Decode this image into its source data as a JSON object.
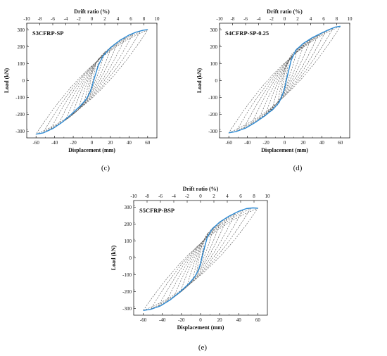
{
  "figure": {
    "panel_captions": [
      "(c)",
      "(d)",
      "(e)"
    ]
  },
  "chart_data": [
    {
      "type": "line",
      "panel": "(c)",
      "specimen": "S3CFRP-SP",
      "xlabel": "Displacement (mm)",
      "ylabel": "Load (kN)",
      "top_xlabel": "Drift ratio (%)",
      "xlim": [
        -70,
        70
      ],
      "ylim": [
        -340,
        340
      ],
      "xticks": [
        -60,
        -40,
        -20,
        0,
        20,
        40,
        60
      ],
      "yticks": [
        -300,
        -200,
        -100,
        0,
        100,
        200,
        300
      ],
      "top_xlim": [
        -10,
        10
      ],
      "top_xticks": [
        -10,
        -8,
        -6,
        -4,
        -2,
        0,
        2,
        4,
        6,
        8,
        10
      ],
      "grid": false,
      "colors": {
        "envelope": "#2e8bd4",
        "cycles": "#5a5a5a"
      },
      "series": [
        {
          "style": "solid",
          "x": [
            -60,
            -52,
            -42,
            -32,
            -22,
            -12,
            -6,
            -2,
            0,
            3,
            7,
            12,
            20,
            30,
            40,
            48,
            55,
            60
          ],
          "y": [
            -318,
            -310,
            -285,
            -248,
            -200,
            -148,
            -110,
            -70,
            -40,
            20,
            90,
            145,
            195,
            238,
            270,
            288,
            298,
            302
          ]
        },
        {
          "style": "dashed",
          "amplitudes": [
            {
              "dmax": 60,
              "pmax": 300,
              "dmin": -60,
              "pmin": -318
            },
            {
              "dmax": 52,
              "pmax": 290,
              "dmin": -52,
              "pmin": -305
            },
            {
              "dmax": 44,
              "pmax": 275,
              "dmin": -44,
              "pmin": -285
            },
            {
              "dmax": 36,
              "pmax": 255,
              "dmin": -36,
              "pmin": -262
            },
            {
              "dmax": 28,
              "pmax": 230,
              "dmin": -28,
              "pmin": -232
            },
            {
              "dmax": 21,
              "pmax": 200,
              "dmin": -21,
              "pmin": -200
            },
            {
              "dmax": 14,
              "pmax": 170,
              "dmin": -14,
              "pmin": -165
            },
            {
              "dmax": 8,
              "pmax": 135,
              "dmin": -8,
              "pmin": -128
            },
            {
              "dmax": 4,
              "pmax": 95,
              "dmin": -4,
              "pmin": -88
            }
          ]
        }
      ]
    },
    {
      "type": "line",
      "panel": "(d)",
      "specimen": "S4CFRP-SP-0.25",
      "xlabel": "Displacement (mm)",
      "ylabel": "Load (kN)",
      "top_xlabel": "Drift ratio (%)",
      "xlim": [
        -70,
        70
      ],
      "ylim": [
        -340,
        340
      ],
      "xticks": [
        -60,
        -40,
        -20,
        0,
        20,
        40,
        60
      ],
      "yticks": [
        -300,
        -200,
        -100,
        0,
        100,
        200,
        300
      ],
      "top_xlim": [
        -10,
        10
      ],
      "top_xticks": [
        -10,
        -8,
        -6,
        -4,
        -2,
        0,
        2,
        4,
        6,
        8,
        10
      ],
      "grid": false,
      "colors": {
        "envelope": "#2e8bd4",
        "cycles": "#5a5a5a"
      },
      "series": [
        {
          "style": "solid",
          "x": [
            -60,
            -52,
            -42,
            -32,
            -22,
            -12,
            -6,
            -2,
            0,
            3,
            7,
            12,
            20,
            30,
            40,
            48,
            55,
            60
          ],
          "y": [
            -310,
            -302,
            -282,
            -250,
            -212,
            -168,
            -130,
            -80,
            -45,
            30,
            120,
            180,
            220,
            255,
            283,
            303,
            318,
            322
          ]
        },
        {
          "style": "dashed",
          "amplitudes": [
            {
              "dmax": 60,
              "pmax": 322,
              "dmin": -60,
              "pmin": -310
            },
            {
              "dmax": 52,
              "pmax": 310,
              "dmin": -52,
              "pmin": -300
            },
            {
              "dmax": 44,
              "pmax": 292,
              "dmin": -44,
              "pmin": -284
            },
            {
              "dmax": 36,
              "pmax": 270,
              "dmin": -36,
              "pmin": -262
            },
            {
              "dmax": 28,
              "pmax": 245,
              "dmin": -28,
              "pmin": -236
            },
            {
              "dmax": 21,
              "pmax": 220,
              "dmin": -21,
              "pmin": -210
            },
            {
              "dmax": 14,
              "pmax": 195,
              "dmin": -14,
              "pmin": -182
            },
            {
              "dmax": 8,
              "pmax": 160,
              "dmin": -8,
              "pmin": -148
            },
            {
              "dmax": 4,
              "pmax": 110,
              "dmin": -4,
              "pmin": -100
            }
          ]
        }
      ]
    },
    {
      "type": "line",
      "panel": "(e)",
      "specimen": "S5CFRP-BSP",
      "xlabel": "Displacement (mm)",
      "ylabel": "Load (kN)",
      "top_xlabel": "Drift ratio (%)",
      "xlim": [
        -70,
        70
      ],
      "ylim": [
        -340,
        340
      ],
      "xticks": [
        -60,
        -40,
        -20,
        0,
        20,
        40,
        60
      ],
      "yticks": [
        -300,
        -200,
        -100,
        0,
        100,
        200,
        300
      ],
      "top_xlim": [
        -10,
        10
      ],
      "top_xticks": [
        -10,
        -8,
        -6,
        -4,
        -2,
        0,
        2,
        4,
        6,
        8,
        10
      ],
      "grid": false,
      "colors": {
        "envelope": "#2e8bd4",
        "cycles": "#5a5a5a"
      },
      "series": [
        {
          "style": "solid",
          "x": [
            -60,
            -52,
            -42,
            -32,
            -22,
            -12,
            -6,
            -2,
            0,
            3,
            7,
            12,
            20,
            30,
            40,
            48,
            55,
            60
          ],
          "y": [
            -312,
            -305,
            -285,
            -250,
            -205,
            -152,
            -112,
            -70,
            -35,
            40,
            120,
            170,
            212,
            248,
            276,
            292,
            296,
            294
          ]
        },
        {
          "style": "dashed",
          "amplitudes": [
            {
              "dmax": 60,
              "pmax": 294,
              "dmin": -60,
              "pmin": -312
            },
            {
              "dmax": 52,
              "pmax": 290,
              "dmin": -52,
              "pmin": -302
            },
            {
              "dmax": 44,
              "pmax": 280,
              "dmin": -44,
              "pmin": -286
            },
            {
              "dmax": 36,
              "pmax": 262,
              "dmin": -36,
              "pmin": -262
            },
            {
              "dmax": 28,
              "pmax": 240,
              "dmin": -28,
              "pmin": -232
            },
            {
              "dmax": 21,
              "pmax": 215,
              "dmin": -21,
              "pmin": -200
            },
            {
              "dmax": 14,
              "pmax": 185,
              "dmin": -14,
              "pmin": -165
            },
            {
              "dmax": 8,
              "pmax": 150,
              "dmin": -8,
              "pmin": -128
            },
            {
              "dmax": 4,
              "pmax": 105,
              "dmin": -4,
              "pmin": -88
            }
          ]
        }
      ]
    }
  ]
}
